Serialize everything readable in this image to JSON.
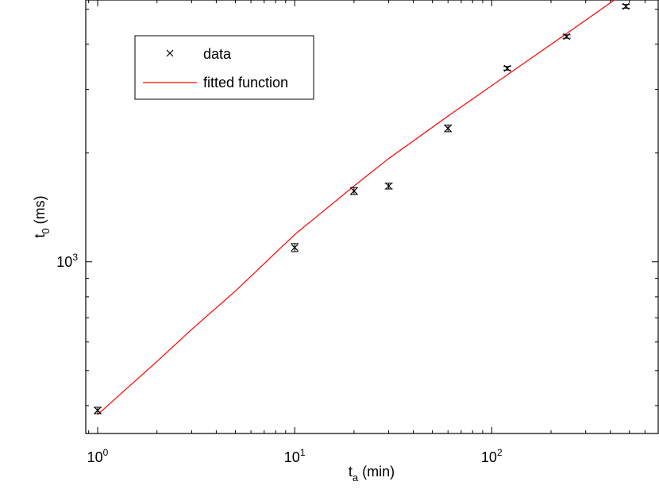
{
  "chart_data": {
    "type": "scatter",
    "x_scale": "log",
    "y_scale": "log",
    "xlim": [
      0.87,
      700
    ],
    "ylim": [
      335,
      5300
    ],
    "xlabel": {
      "main": "t",
      "sub": "a",
      "rest": " (min)"
    },
    "ylabel": {
      "main": "t",
      "sub": "0",
      "rest": " (ms)"
    },
    "x_tick_labels": [
      {
        "value": 1,
        "base": "10",
        "exp": "0"
      },
      {
        "value": 10,
        "base": "10",
        "exp": "1"
      },
      {
        "value": 100,
        "base": "10",
        "exp": "2"
      }
    ],
    "y_tick_labels": [
      {
        "value": 1000,
        "base": "10",
        "exp": "3"
      }
    ],
    "grid": false,
    "legend_position": "top-left",
    "series": [
      {
        "name": "data",
        "kind": "points-with-errorbars",
        "marker": "x",
        "color": "#000000",
        "x": [
          1,
          10,
          20,
          30,
          60,
          120,
          240,
          480
        ],
        "y": [
          388,
          1095,
          1570,
          1620,
          2340,
          3430,
          4200,
          5090
        ],
        "y_err": [
          8,
          28,
          35,
          30,
          50,
          40,
          45,
          60
        ]
      },
      {
        "name": "fitted function",
        "kind": "line",
        "color": "#ff0000",
        "x": [
          1,
          2,
          3,
          5,
          10,
          20,
          30,
          60,
          120,
          240,
          480
        ],
        "y": [
          378,
          530,
          650,
          830,
          1190,
          1620,
          1930,
          2530,
          3290,
          4280,
          5580
        ]
      }
    ]
  }
}
